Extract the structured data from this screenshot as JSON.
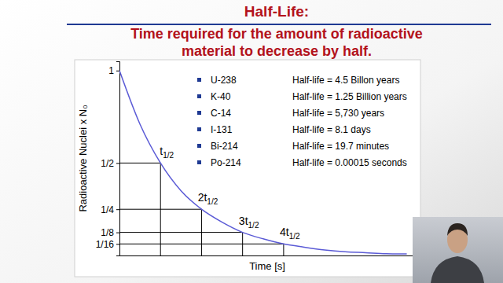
{
  "slide": {
    "title": "Half-Life:",
    "subtitle": "Time required for the amount of radioactive material to decrease by half.",
    "list": [
      {
        "name": "U-238",
        "text": "Half-life = 4.5 Billon years"
      },
      {
        "name": "K-40",
        "text": "Half-life = 1.25 Billion years"
      },
      {
        "name": "C-14",
        "text": "Half-life = 5,730 years"
      },
      {
        "name": "I-131",
        "text": "Half-life = 8.1 days"
      },
      {
        "name": "Bi-214",
        "text": "Half-life = 19.7 minutes"
      },
      {
        "name": "Po-214",
        "text": "Half-life = 0.00015 seconds"
      }
    ]
  },
  "chart_data": {
    "type": "line",
    "x_label": "Time [s]",
    "y_label": "Radioactive Nuclei x N₀",
    "x": [
      0,
      0.5,
      1,
      1.5,
      2,
      2.5,
      3,
      3.5,
      4,
      4.5,
      5,
      5.5,
      6,
      6.5,
      7
    ],
    "values": [
      1,
      0.71,
      0.5,
      0.35,
      0.25,
      0.18,
      0.125,
      0.09,
      0.0625,
      0.045,
      0.03,
      0.02,
      0.015,
      0.01,
      0.008
    ],
    "color": "#5b5bd6",
    "xlim": [
      0,
      7.2
    ],
    "ylim": [
      0,
      1.05
    ],
    "yticks": [
      1,
      {
        "value": 0.5,
        "label": "1/2"
      },
      {
        "value": 0.25,
        "label": "1/4"
      },
      {
        "value": 0.125,
        "label": "1/8"
      },
      {
        "value": 0.0625,
        "label": "1/16"
      }
    ],
    "tick_labels": "y",
    "annotations": [
      {
        "label": "t1/2",
        "x": 1,
        "y": 0.5
      },
      {
        "label": "2t1/2",
        "x": 2,
        "y": 0.25
      },
      {
        "label": "3t1/2",
        "x": 3,
        "y": 0.125
      },
      {
        "label": "4t1/2",
        "x": 4,
        "y": 0.0625
      }
    ]
  }
}
